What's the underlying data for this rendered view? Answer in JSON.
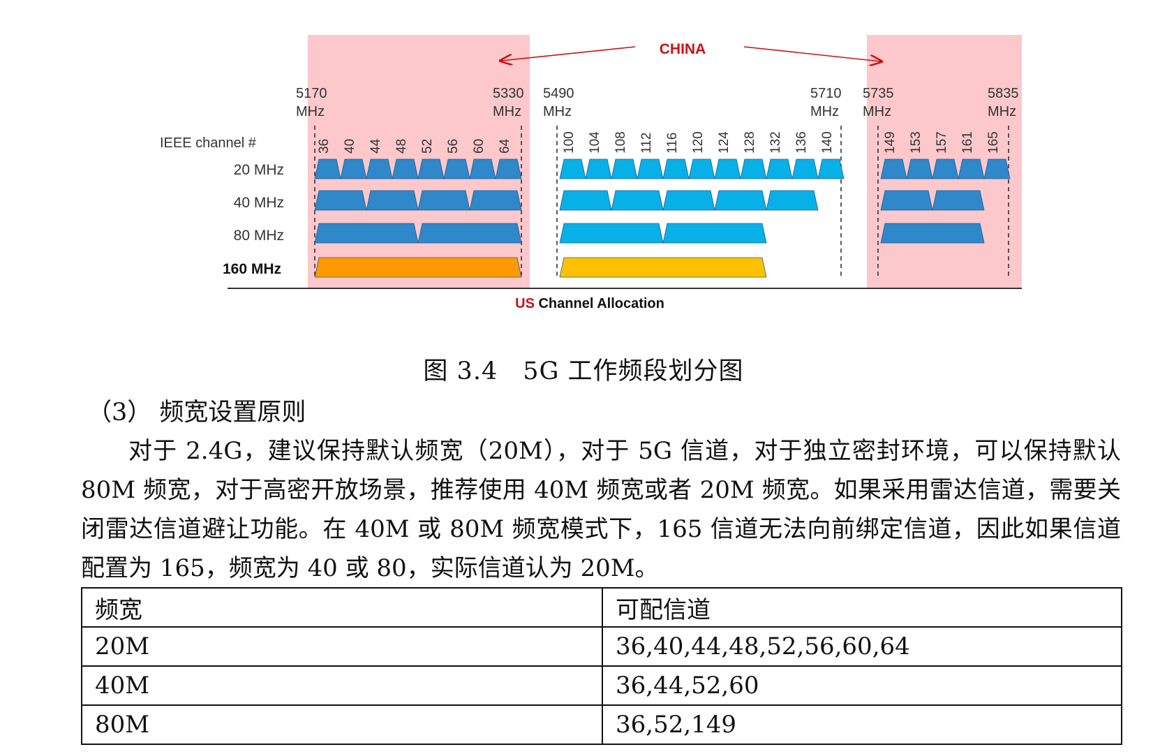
{
  "figure": {
    "china_label": "CHINA",
    "us_label_colored": "US",
    "us_label_rest": " Channel Allocation",
    "ieee_label": "IEEE channel #",
    "freqs": [
      {
        "num": "5170",
        "unit": "MHz"
      },
      {
        "num": "5330",
        "unit": "MHz"
      },
      {
        "num": "5490",
        "unit": "MHz"
      },
      {
        "num": "5710",
        "unit": "MHz"
      },
      {
        "num": "5735",
        "unit": "MHz"
      },
      {
        "num": "5835",
        "unit": "MHz"
      }
    ],
    "channels": [
      "36",
      "40",
      "44",
      "48",
      "52",
      "56",
      "60",
      "64",
      "100",
      "104",
      "108",
      "112",
      "116",
      "120",
      "124",
      "128",
      "132",
      "136",
      "140",
      "149",
      "153",
      "157",
      "161",
      "165"
    ],
    "rows": [
      "20 MHz",
      "40 MHz",
      "80 MHz",
      "160 MHz"
    ],
    "colors": {
      "china_band": "#fcc8cc",
      "unii_low_high": "#2e88c9",
      "unii_mid": "#08b0e8",
      "band160_low": "#ff9900",
      "band160_mid": "#ffc000",
      "china_text": "#cc1111"
    }
  },
  "caption": "图 3.4　5G 工作频段划分图",
  "section_heading": "（3） 频宽设置原则",
  "paragraph": "对于 2.4G，建议保持默认频宽（20M），对于 5G 信道，对于独立密封环境，可以保持默认 80M 频宽，对于高密开放场景，推荐使用 40M 频宽或者 20M 频宽。如果采用雷达信道，需要关闭雷达信道避让功能。在 40M 或 80M 频宽模式下，165 信道无法向前绑定信道，因此如果信道配置为 165，频宽为 40 或 80，实际信道认为 20M。",
  "table": {
    "header": [
      "频宽",
      "可配信道"
    ],
    "rows": [
      [
        "20M",
        "36,40,44,48,52,56,60,64"
      ],
      [
        "40M",
        "36,44,52,60"
      ],
      [
        "80M",
        "36,52,149"
      ]
    ]
  }
}
